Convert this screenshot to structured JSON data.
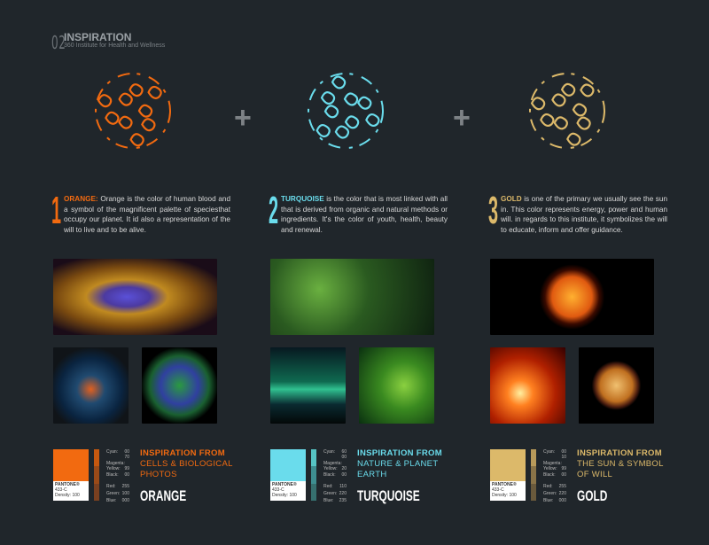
{
  "header": {
    "number": "02",
    "title": "INSPIRATION",
    "subtitle": "360 Institute for Health and Wellness"
  },
  "plus_symbol": "+",
  "columns": [
    {
      "number": "1",
      "keyword": "ORANGE:",
      "text": " Orange is the color of human blood and a symbol of the magnificent palette of speciesthat occupy our planet. It id also a representation of the will to live and to be alive.",
      "color": "#f26a10",
      "bar": [
        "#c6580f",
        "#9a4a18",
        "#7a4020"
      ],
      "cmyk": [
        [
          "Cyan:",
          "00"
        ],
        [
          "Magenta:",
          "70"
        ],
        [
          "Yellow:",
          "99"
        ],
        [
          "Black:",
          "00"
        ]
      ],
      "rgb": [
        [
          "Red:",
          "255"
        ],
        [
          "Green:",
          "100"
        ],
        [
          "Blue:",
          "000"
        ]
      ],
      "pantone": "PANTONE®",
      "pantone_code": "433-C",
      "density": "Density: 100",
      "insp_title": "INSPIRATION FROM",
      "insp_line1": "CELLS & BIOLOGICAL",
      "insp_line2": "PHOTOS",
      "name": "ORANGE"
    },
    {
      "number": "2",
      "keyword": "TURQUOISE",
      "text": " is the color that is most linked with all that is derived from organic and natural methods or ingredients. It's the color of youth, health, beauty and renewal.",
      "color": "#6adcec",
      "bar": [
        "#56c4c4",
        "#3e8e90",
        "#36706f"
      ],
      "cmyk": [
        [
          "Cyan:",
          "60"
        ],
        [
          "Magenta:",
          "00"
        ],
        [
          "Yellow:",
          "20"
        ],
        [
          "Black:",
          "00"
        ]
      ],
      "rgb": [
        [
          "Red:",
          "110"
        ],
        [
          "Green:",
          "220"
        ],
        [
          "Blue:",
          "235"
        ]
      ],
      "pantone": "PANTONE®",
      "pantone_code": "433-C",
      "density": "Density: 100",
      "insp_title": "INSPIRATION FROM",
      "insp_line1": "NATURE & PLANET",
      "insp_line2": "EARTH",
      "name": "TURQUOISE"
    },
    {
      "number": "3",
      "keyword": "GOLD",
      "text": " is one of the primary we usually see the sun in. This color represents energy, power and human will. in regards to this institute, it symbolizes the will to educate, inform and offer guidance.",
      "color": "#dcb96a",
      "bar": [
        "#b89a5a",
        "#8a7448",
        "#6a5a3c"
      ],
      "cmyk": [
        [
          "Cyan:",
          "00"
        ],
        [
          "Magenta:",
          "10"
        ],
        [
          "Yellow:",
          "99"
        ],
        [
          "Black:",
          "00"
        ]
      ],
      "rgb": [
        [
          "Red:",
          "255"
        ],
        [
          "Green:",
          "220"
        ],
        [
          "Blue:",
          "000"
        ]
      ],
      "pantone": "PANTONE®",
      "pantone_code": "433-C",
      "density": "Density: 100",
      "insp_title": "INSPIRATION FROM",
      "insp_line1": "THE SUN & SYMBOL",
      "insp_line2": "OF WILL",
      "name": "GOLD"
    }
  ]
}
